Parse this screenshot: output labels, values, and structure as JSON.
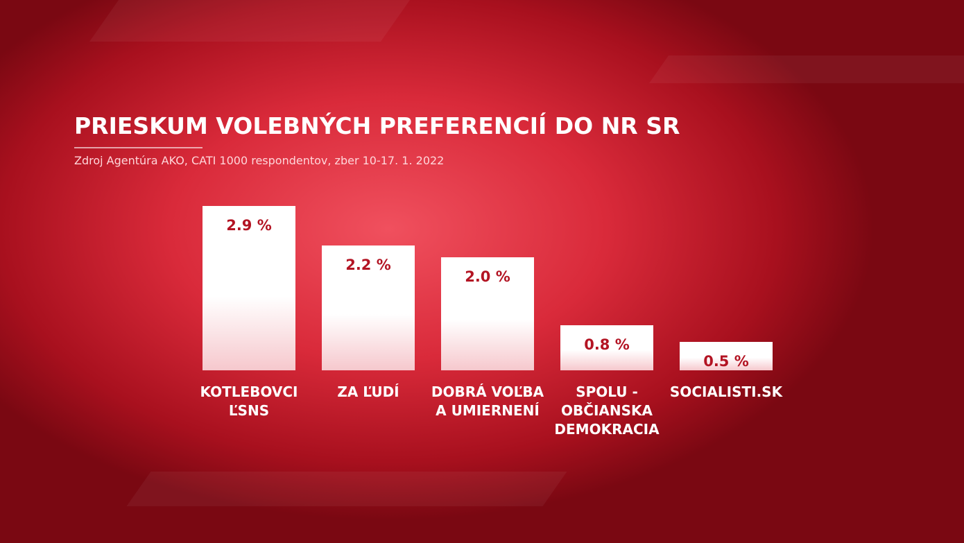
{
  "chart_data": {
    "type": "bar",
    "title": "PRIESKUM VOLEBNÝCH PREFERENCIÍ DO NR SR",
    "subtitle": "Zdroj Agentúra AKO, CATI 1000 respondentov, zber 10-17. 1. 2022",
    "categories": [
      "KOTLEBOVCI\nĽSNS",
      "ZA ĽUDÍ",
      "DOBRÁ VOĽBA\nA UMIERNENÍ",
      "SPOLU -\nOBČIANSKA\nDEMOKRACIA",
      "SOCIALISTI.SK"
    ],
    "values": [
      2.9,
      2.2,
      2.0,
      0.8,
      0.5
    ],
    "value_labels": [
      "2.9 %",
      "2.2 %",
      "2.0 %",
      "0.8 %",
      "0.5 %"
    ],
    "color": "#ffffff"
  }
}
